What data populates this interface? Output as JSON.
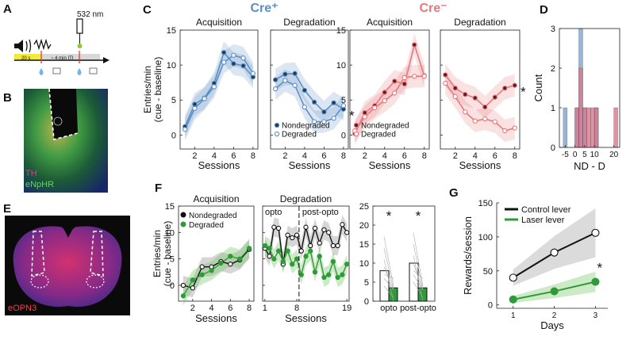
{
  "panel_letters": [
    "A",
    "B",
    "C",
    "D",
    "E",
    "F",
    "G"
  ],
  "panelA": {
    "laser_label": "532 nm",
    "cue_label": "20 s",
    "iti_label": "~ 4 min ITI"
  },
  "panelB": {
    "labels": [
      "TH",
      "eNpHR"
    ]
  },
  "panelE": {
    "label": "eOPN3"
  },
  "colors": {
    "cre_pos": "#5b8fc4",
    "cre_neg": "#e8777c",
    "green": "#2f9a3a",
    "gray": "#777777"
  },
  "chart_data": [
    {
      "id": "C",
      "type": "line",
      "group_labels": [
        "Cre⁺",
        "Cre⁻"
      ],
      "ylabel": "Entries/min\n(cue - baseline)",
      "xlabel": "Sessions",
      "ylim": [
        -2,
        15
      ],
      "yticks": [
        0,
        5,
        10,
        15
      ],
      "xticks": [
        2,
        4,
        6,
        8
      ],
      "xlim": [
        0.5,
        8.5
      ],
      "legend": [
        "Nondegraded",
        "Degraded"
      ],
      "subplots": [
        {
          "title": "Acquisition",
          "group": "cre_pos",
          "series": [
            {
              "name": "Nondegraded",
              "x": [
                1,
                2,
                3,
                4,
                5,
                6,
                7,
                8
              ],
              "values": [
                1.2,
                4.4,
                5.3,
                7.4,
                11.8,
                10.2,
                9.9,
                8.3
              ]
            },
            {
              "name": "Degraded",
              "x": [
                1,
                2,
                3,
                4,
                5,
                6,
                7,
                8
              ],
              "values": [
                0.8,
                3.8,
                5.2,
                6.9,
                10.4,
                11.4,
                11.0,
                8.8
              ]
            }
          ]
        },
        {
          "title": "Degradation",
          "group": "cre_pos",
          "sig": "*",
          "series": [
            {
              "name": "Nondegraded",
              "x": [
                1,
                2,
                3,
                4,
                5,
                6,
                7,
                8
              ],
              "values": [
                7.9,
                8.7,
                8.8,
                6.4,
                4.7,
                3.3,
                4.6,
                3.7
              ]
            },
            {
              "name": "Degraded",
              "x": [
                1,
                2,
                3,
                4,
                5,
                6,
                7,
                8
              ],
              "values": [
                6.6,
                7.8,
                7.1,
                4.0,
                1.9,
                1.9,
                2.4,
                4.2
              ]
            }
          ]
        },
        {
          "title": "Acquisition",
          "group": "cre_neg",
          "series": [
            {
              "name": "Nondegraded",
              "x": [
                1,
                2,
                3,
                4,
                5,
                6,
                7,
                8
              ],
              "values": [
                0.2,
                3.2,
                4.2,
                6.1,
                7.7,
                7.3,
                12.9,
                8.5
              ]
            },
            {
              "name": "Degraded",
              "x": [
                1,
                2,
                3,
                4,
                5,
                6,
                7,
                8
              ],
              "values": [
                0.6,
                2.6,
                3.9,
                4.9,
                6.0,
                8.2,
                8.4,
                8.4
              ]
            }
          ]
        },
        {
          "title": "Degradation",
          "group": "cre_neg",
          "sig": "*",
          "series": [
            {
              "name": "Nondegraded",
              "x": [
                1,
                2,
                3,
                4,
                5,
                6,
                7,
                8
              ],
              "values": [
                8.6,
                6.7,
                5.8,
                5.3,
                4.0,
                5.4,
                6.7,
                7.1
              ]
            },
            {
              "name": "Degraded",
              "x": [
                1,
                2,
                3,
                4,
                5,
                6,
                7,
                8
              ],
              "values": [
                7.4,
                5.5,
                3.3,
                2.0,
                2.3,
                1.9,
                0.6,
                1.0
              ]
            }
          ]
        }
      ]
    },
    {
      "id": "D",
      "type": "histogram",
      "xlabel": "ND - D",
      "ylabel": "Count",
      "xlim": [
        -8,
        23
      ],
      "ylim": [
        0,
        3
      ],
      "xticks": [
        -5,
        0,
        5,
        10,
        20
      ],
      "yticks": [
        0,
        1,
        2,
        3
      ],
      "bin_width": 2,
      "series": [
        {
          "name": "Cre⁺",
          "bins": [
            [
              -6,
              1
            ],
            [
              0,
              1
            ],
            [
              2,
              3
            ],
            [
              4,
              1
            ],
            [
              10,
              1
            ]
          ]
        },
        {
          "name": "Cre⁻",
          "bins": [
            [
              0,
              1
            ],
            [
              2,
              2
            ],
            [
              4,
              1
            ],
            [
              6,
              1
            ],
            [
              8,
              1
            ],
            [
              10,
              1
            ],
            [
              20,
              1
            ]
          ]
        }
      ]
    },
    {
      "id": "F",
      "type": "line",
      "ylabel": "Entries/min\n(cue - baseline)",
      "xlabel": "Sessions",
      "legend": [
        "Nondegraded",
        "Degraded"
      ],
      "ylim": [
        -3,
        15
      ],
      "yticks": [
        0,
        5,
        10,
        15
      ],
      "subplots": [
        {
          "title": "Acquisition",
          "xlim": [
            0.5,
            8.5
          ],
          "xticks": [
            2,
            4,
            6,
            8
          ],
          "series": [
            {
              "name": "Nondegraded",
              "x": [
                1,
                2,
                3,
                4,
                5,
                6,
                7,
                8
              ],
              "values": [
                0.0,
                -0.5,
                3.5,
                3.5,
                4.5,
                4.0,
                4.8,
                6.8
              ]
            },
            {
              "name": "Degraded",
              "x": [
                1,
                2,
                3,
                4,
                5,
                6,
                7,
                8
              ],
              "values": [
                -2.0,
                1.0,
                2.0,
                2.8,
                4.2,
                5.5,
                5.0,
                7.0
              ]
            }
          ]
        },
        {
          "title": "Degradation",
          "xlim": [
            0.5,
            19.5
          ],
          "xticks": [
            1,
            8,
            19
          ],
          "divider_x": 8.5,
          "phase_labels": [
            "opto",
            "post-opto"
          ],
          "series": [
            {
              "name": "Nondegraded",
              "x": [
                1,
                2,
                3,
                4,
                5,
                6,
                7,
                8,
                9,
                10,
                11,
                12,
                13,
                14,
                15,
                16,
                17,
                18,
                19
              ],
              "values": [
                7.0,
                5.5,
                11.0,
                10.8,
                4.0,
                9.5,
                9.0,
                9.5,
                6.5,
                11.0,
                7.5,
                10.8,
                8.0,
                10.5,
                10.0,
                7.5,
                7.5,
                11.5,
                10.0
              ]
            },
            {
              "name": "Degraded",
              "x": [
                1,
                2,
                3,
                4,
                5,
                6,
                7,
                8,
                9,
                10,
                11,
                12,
                13,
                14,
                15,
                16,
                17,
                18,
                19
              ],
              "values": [
                7.5,
                7.0,
                5.0,
                6.5,
                4.5,
                6.5,
                4.0,
                5.0,
                2.0,
                5.5,
                6.5,
                2.5,
                5.5,
                1.5,
                2.0,
                4.5,
                1.5,
                2.0,
                4.0
              ]
            }
          ]
        },
        {
          "title": "",
          "type": "bar",
          "categories": [
            "opto",
            "post-opto"
          ],
          "ylim": [
            0,
            25
          ],
          "yticks": [
            0,
            5,
            10,
            15,
            20,
            25
          ],
          "sig": "*",
          "series": [
            {
              "name": "Nondegraded",
              "values": [
                8.0,
                10.0
              ]
            },
            {
              "name": "Degraded",
              "values": [
                3.5,
                3.5
              ]
            }
          ]
        }
      ]
    },
    {
      "id": "G",
      "type": "line",
      "xlabel": "Days",
      "ylabel": "Rewards/session",
      "xlim": [
        0.6,
        3.3
      ],
      "ylim": [
        -5,
        150
      ],
      "xticks": [
        1,
        2,
        3
      ],
      "yticks": [
        0,
        50,
        100,
        150
      ],
      "legend": [
        "Control lever",
        "Laser lever"
      ],
      "sig": "*",
      "series": [
        {
          "name": "Control lever",
          "x": [
            1,
            2,
            3
          ],
          "values": [
            40,
            77,
            106
          ]
        },
        {
          "name": "Laser lever",
          "x": [
            1,
            2,
            3
          ],
          "values": [
            8,
            20,
            34
          ]
        }
      ]
    }
  ]
}
